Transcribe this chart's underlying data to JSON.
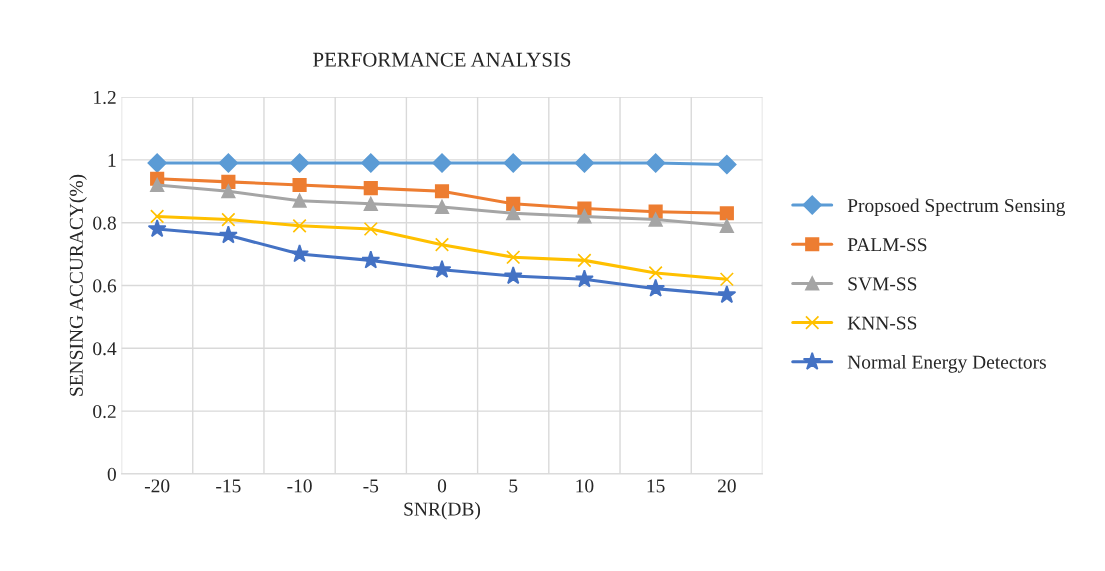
{
  "chart_data": {
    "type": "line",
    "title": "PERFORMANCE ANALYSIS",
    "xlabel": "SNR(DB)",
    "ylabel": "SENSING ACCURACY(%)",
    "categories": [
      "-20",
      "-15",
      "-10",
      "-5",
      "0",
      "5",
      "10",
      "15",
      "20"
    ],
    "series": [
      {
        "name": "Propsoed Spectrum Sensing",
        "color": "#5b9bd5",
        "marker": "diamond",
        "values": [
          0.99,
          0.99,
          0.99,
          0.99,
          0.99,
          0.99,
          0.99,
          0.99,
          0.985
        ]
      },
      {
        "name": "PALM-SS",
        "color": "#ed7d31",
        "marker": "square",
        "values": [
          0.94,
          0.93,
          0.92,
          0.91,
          0.9,
          0.86,
          0.845,
          0.835,
          0.83
        ]
      },
      {
        "name": "SVM-SS",
        "color": "#a5a5a5",
        "marker": "triangle",
        "values": [
          0.92,
          0.9,
          0.87,
          0.86,
          0.85,
          0.83,
          0.82,
          0.81,
          0.79
        ]
      },
      {
        "name": "KNN-SS",
        "color": "#ffc000",
        "marker": "cross",
        "values": [
          0.82,
          0.81,
          0.79,
          0.78,
          0.73,
          0.69,
          0.68,
          0.64,
          0.62
        ]
      },
      {
        "name": "Normal Energy Detectors",
        "color": "#4472c4",
        "marker": "star",
        "values": [
          0.78,
          0.76,
          0.7,
          0.68,
          0.65,
          0.63,
          0.62,
          0.59,
          0.57
        ]
      }
    ],
    "ylim": [
      0,
      1.2
    ],
    "yticks": [
      0,
      0.2,
      0.4,
      0.6,
      0.8,
      1,
      1.2
    ],
    "grid": true,
    "legend": "right"
  }
}
